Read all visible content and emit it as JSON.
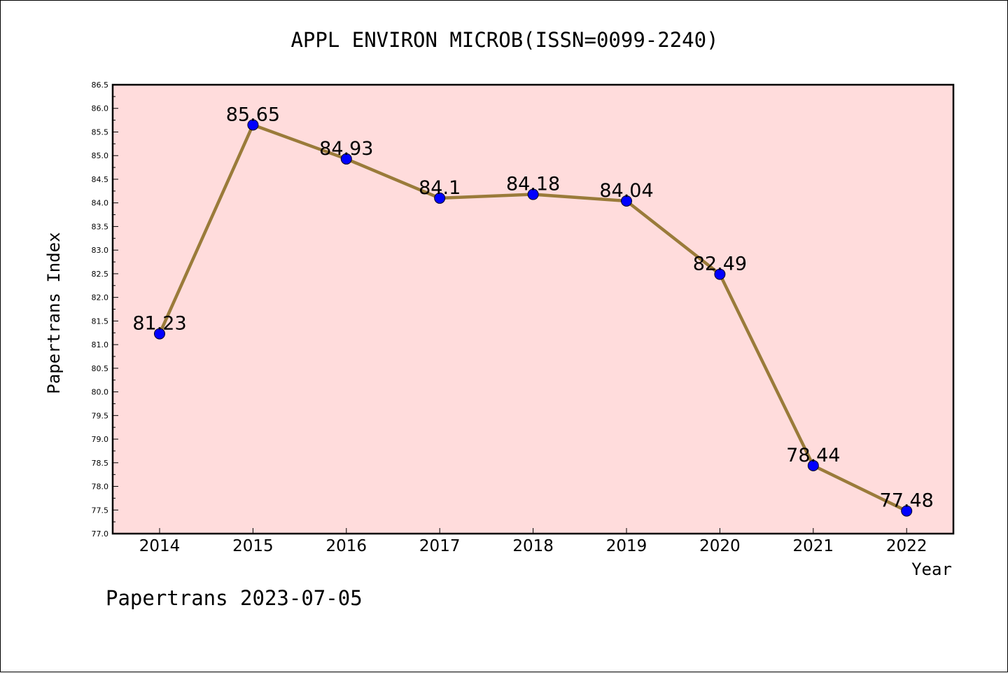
{
  "chart_data": {
    "type": "line",
    "title": "APPL ENVIRON MICROB(ISSN=0099-2240)",
    "xlabel": "Year",
    "ylabel": "Papertrans Index",
    "x": [
      "2014",
      "2015",
      "2016",
      "2017",
      "2018",
      "2019",
      "2020",
      "2021",
      "2022"
    ],
    "series": [
      {
        "values": [
          81.23,
          85.65,
          84.93,
          84.1,
          84.18,
          84.04,
          82.49,
          78.44,
          77.48
        ]
      }
    ],
    "data_labels": [
      "81.23",
      "85.65",
      "84.93",
      "84.1",
      "84.18",
      "84.04",
      "82.49",
      "78.44",
      "77.48"
    ],
    "ylim": [
      77.0,
      86.5
    ],
    "ytick_step": 0.5,
    "grid": false,
    "colors": {
      "plot_background": "#ffdcdc",
      "line": "#9a7b3a",
      "marker": "#0000ff"
    }
  },
  "footer": "Papertrans 2023-07-05"
}
